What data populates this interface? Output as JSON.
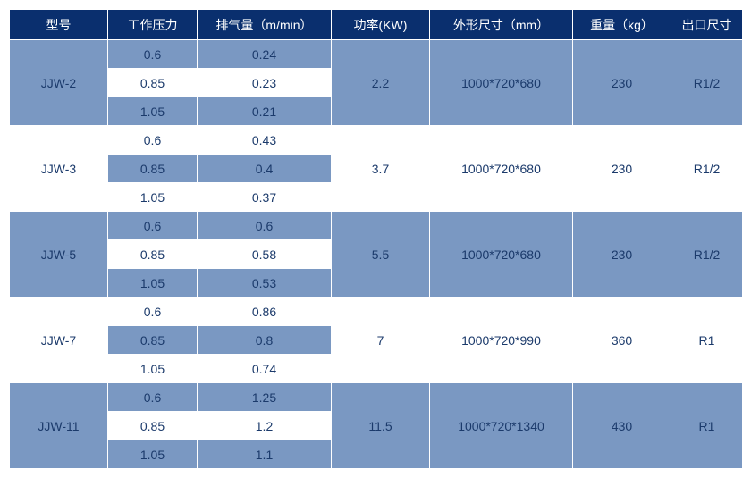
{
  "colors": {
    "header_bg": "#0a2f6e",
    "band_bg": "#7a98c2",
    "white_bg": "#ffffff",
    "text_dark": "#1b3a6b",
    "text_light": "#ffffff"
  },
  "headers": {
    "model": "型号",
    "pressure": "工作压力",
    "displacement": "排气量（m/min）",
    "power": "功率(KW)",
    "dimensions": "外形尺寸（mm）",
    "weight": "重量（kg）",
    "outlet": "出口尺寸"
  },
  "groups": [
    {
      "model": "JJW-2",
      "band": true,
      "power": "2.2",
      "dimensions": "1000*720*680",
      "weight": "230",
      "outlet": "R1/2",
      "rows": [
        {
          "pressure": "0.6",
          "displacement": "0.24",
          "alt": false
        },
        {
          "pressure": "0.85",
          "displacement": "0.23",
          "alt": true
        },
        {
          "pressure": "1.05",
          "displacement": "0.21",
          "alt": false
        }
      ]
    },
    {
      "model": "JJW-3",
      "band": false,
      "power": "3.7",
      "dimensions": "1000*720*680",
      "weight": "230",
      "outlet": "R1/2",
      "rows": [
        {
          "pressure": "0.6",
          "displacement": "0.43",
          "alt": false
        },
        {
          "pressure": "0.85",
          "displacement": "0.4",
          "alt": true
        },
        {
          "pressure": "1.05",
          "displacement": "0.37",
          "alt": false
        }
      ]
    },
    {
      "model": "JJW-5",
      "band": true,
      "power": "5.5",
      "dimensions": "1000*720*680",
      "weight": "230",
      "outlet": "R1/2",
      "rows": [
        {
          "pressure": "0.6",
          "displacement": "0.6",
          "alt": false
        },
        {
          "pressure": "0.85",
          "displacement": "0.58",
          "alt": true
        },
        {
          "pressure": "1.05",
          "displacement": "0.53",
          "alt": false
        }
      ]
    },
    {
      "model": "JJW-7",
      "band": false,
      "power": "7",
      "dimensions": "1000*720*990",
      "weight": "360",
      "outlet": "R1",
      "rows": [
        {
          "pressure": "0.6",
          "displacement": "0.86",
          "alt": false
        },
        {
          "pressure": "0.85",
          "displacement": "0.8",
          "alt": true
        },
        {
          "pressure": "1.05",
          "displacement": "0.74",
          "alt": false
        }
      ]
    },
    {
      "model": "JJW-11",
      "band": true,
      "power": "11.5",
      "dimensions": "1000*720*1340",
      "weight": "430",
      "outlet": "R1",
      "rows": [
        {
          "pressure": "0.6",
          "displacement": "1.25",
          "alt": false
        },
        {
          "pressure": "0.85",
          "displacement": "1.2",
          "alt": true
        },
        {
          "pressure": "1.05",
          "displacement": "1.1",
          "alt": false
        }
      ]
    }
  ]
}
